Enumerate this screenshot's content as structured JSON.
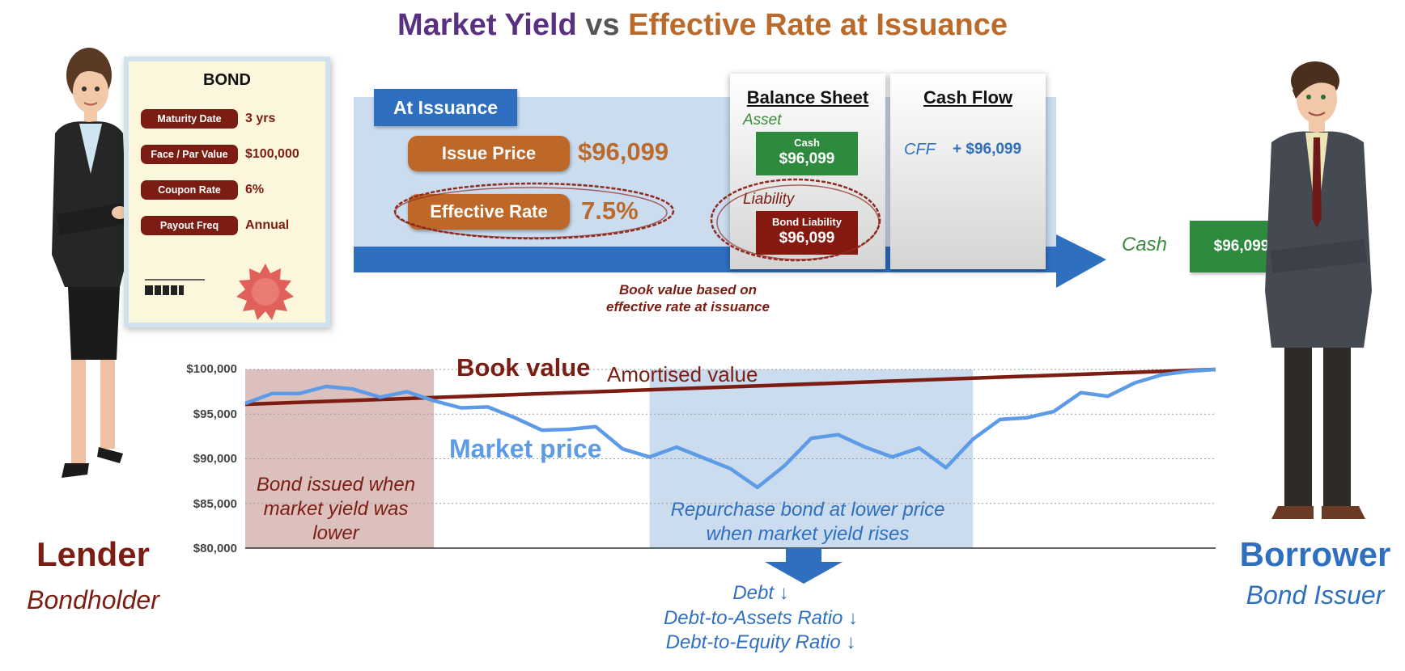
{
  "title": {
    "part1": "Market Yield",
    "part2": "vs",
    "part3": "Effective Rate at Issuance"
  },
  "bond_card": {
    "title": "BOND",
    "rows": [
      {
        "label": "Maturity Date",
        "value": "3 yrs"
      },
      {
        "label": "Face / Par Value",
        "value": "$100,000"
      },
      {
        "label": "Coupon Rate",
        "value": "6%"
      },
      {
        "label": "Payout Freq",
        "value": "Annual"
      }
    ],
    "seal_color": "#e0605a"
  },
  "issuance": {
    "header": "At Issuance",
    "issue_price_label": "Issue Price",
    "issue_price_value": "$96,099",
    "effective_rate_label": "Effective Rate",
    "effective_rate_value": "7.5%"
  },
  "balance_sheet": {
    "title": "Balance Sheet",
    "asset_label": "Asset",
    "cash_label": "Cash",
    "cash_value": "$96,099",
    "liability_label": "Liability",
    "bond_liability_label": "Bond Liability",
    "bond_liability_value": "$96,099"
  },
  "cash_flow": {
    "title": "Cash Flow",
    "cff_label": "CFF",
    "cff_value": "+ $96,099"
  },
  "cash_transfer": {
    "label": "Cash",
    "value": "$96,099"
  },
  "book_value_note": "Book value based on effective rate at issuance",
  "chart_data": {
    "type": "line",
    "ylim": [
      80000,
      100000
    ],
    "yticks": [
      "$100,000",
      "$95,000",
      "$90,000",
      "$85,000",
      "$80,000"
    ],
    "ytick_values": [
      100000,
      95000,
      90000,
      85000,
      80000
    ],
    "grid": true,
    "series": [
      {
        "name": "Book value",
        "label_suffix": "Amortised value",
        "color": "#7b1d13",
        "values": [
          96099,
          100000
        ]
      },
      {
        "name": "Market price",
        "color": "#5e9be6",
        "values": [
          96200,
          97300,
          97300,
          98100,
          97800,
          96900,
          97500,
          96500,
          95700,
          95800,
          94600,
          93200,
          93300,
          93600,
          91100,
          90200,
          91300,
          90100,
          88900,
          86800,
          89200,
          92300,
          92700,
          91300,
          90200,
          91200,
          89000,
          92200,
          94400,
          94600,
          95300,
          97400,
          97000,
          98500,
          99400,
          99800,
          100000
        ]
      }
    ],
    "shaded_regions": [
      {
        "note": "Bond issued when market yield was lower",
        "color": "#dcc0bd",
        "from_index": 0,
        "to_index": 7
      },
      {
        "note": "Repurchase bond at lower price when market yield rises",
        "color": "#cbdcee",
        "from_index": 15,
        "to_index": 27
      }
    ]
  },
  "effects": [
    "Debt ↓",
    "Debt-to-Assets Ratio ↓",
    "Debt-to-Equity Ratio ↓"
  ],
  "lender": {
    "name": "Lender",
    "role": "Bondholder"
  },
  "borrower": {
    "name": "Borrower",
    "role": "Bond Issuer"
  }
}
